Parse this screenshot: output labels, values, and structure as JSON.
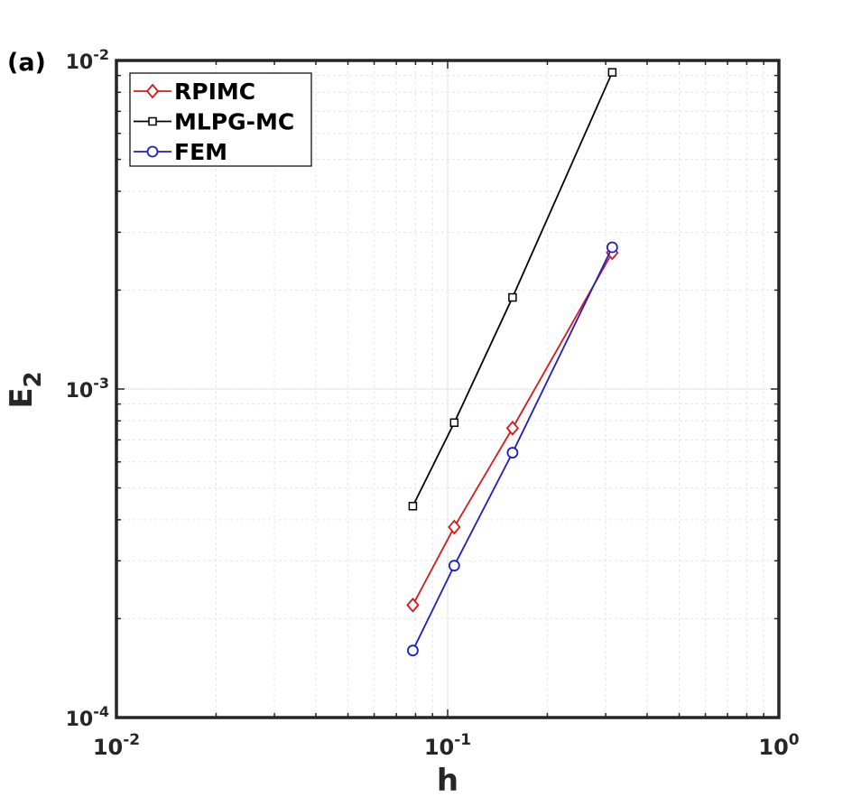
{
  "panel_label": "(a)",
  "chart_data": {
    "type": "line",
    "xscale": "log",
    "yscale": "log",
    "xlabel": "h",
    "ylabel_main": "E",
    "ylabel_sub": "2",
    "xlim": [
      0.01,
      1
    ],
    "ylim": [
      0.0001,
      0.01
    ],
    "grid": true,
    "legend_position": "top-left",
    "x_ticks": [
      {
        "base": "10",
        "exp": "-2",
        "value": 0.01
      },
      {
        "base": "10",
        "exp": "-1",
        "value": 0.1
      },
      {
        "base": "10",
        "exp": "0",
        "value": 1
      }
    ],
    "y_ticks": [
      {
        "base": "10",
        "exp": "-4",
        "value": 0.0001
      },
      {
        "base": "10",
        "exp": "-3",
        "value": 0.001
      },
      {
        "base": "10",
        "exp": "-2",
        "value": 0.01
      }
    ],
    "series": [
      {
        "name": "RPIMC",
        "color": "#d7191c",
        "marker": "diamond",
        "x": [
          0.0785,
          0.1047,
          0.157,
          0.314
        ],
        "y": [
          0.00022,
          0.00038,
          0.00076,
          0.0026
        ]
      },
      {
        "name": "MLPG-MC",
        "color": "#000000",
        "marker": "square",
        "x": [
          0.0785,
          0.1047,
          0.157,
          0.314
        ],
        "y": [
          0.00044,
          0.00079,
          0.0019,
          0.0092
        ]
      },
      {
        "name": "FEM",
        "color": "#1f1fbf",
        "marker": "circle",
        "x": [
          0.0785,
          0.1047,
          0.157,
          0.314
        ],
        "y": [
          0.00016,
          0.00029,
          0.00064,
          0.0027
        ]
      }
    ]
  }
}
